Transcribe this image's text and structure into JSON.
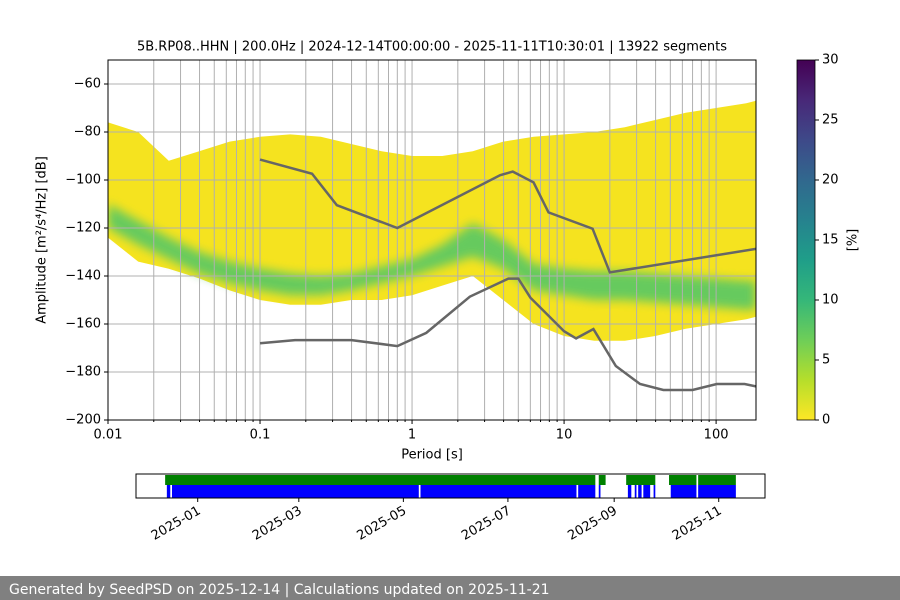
{
  "chart_data": [
    {
      "type": "ppsd",
      "title": "5B.RP08..HHN | 200.0Hz | 2024-12-14T00:00:00 - 2025-11-11T10:30:01 | 13922 segments",
      "xlabel": "Period [s]",
      "ylabel": "Amplitude [m²/s⁴/Hz] [dB]",
      "log_x": true,
      "grid": true,
      "xlim": [
        0.01,
        183
      ],
      "ylim": [
        -200,
        -50
      ],
      "xticks": [
        0.01,
        0.1,
        1,
        10,
        100
      ],
      "xminorticks": [
        0.02,
        0.03,
        0.04,
        0.05,
        0.06,
        0.07,
        0.08,
        0.09,
        0.2,
        0.3,
        0.4,
        0.5,
        0.6,
        0.7,
        0.8,
        0.9,
        2,
        3,
        4,
        5,
        6,
        7,
        8,
        9,
        20,
        30,
        40,
        50,
        60,
        70,
        80,
        90
      ],
      "yticks": [
        {
          "value": -200,
          "label": "−200"
        },
        {
          "value": -180,
          "label": "−180"
        },
        {
          "value": -160,
          "label": "−160"
        },
        {
          "value": -140,
          "label": "−140"
        },
        {
          "value": -120,
          "label": "−120"
        },
        {
          "value": -100,
          "label": "−100"
        },
        {
          "value": -80,
          "label": "−80"
        },
        {
          "value": -60,
          "label": "−60"
        }
      ],
      "density": {
        "color": "#f5e31f",
        "core_color": "#5ec962",
        "x": [
          0.01,
          0.0158,
          0.0251,
          0.0398,
          0.0631,
          0.1,
          0.158,
          0.251,
          0.398,
          0.631,
          1,
          1.58,
          2.51,
          3.98,
          6.31,
          10,
          15.8,
          25.1,
          39.8,
          63.1,
          100,
          158,
          183
        ],
        "upper": [
          -76,
          -80,
          -92,
          -88,
          -84,
          -82,
          -81,
          -82,
          -85,
          -88,
          -90,
          -90,
          -88,
          -84,
          -82,
          -81,
          -80,
          -78,
          -75,
          -72,
          -70,
          -68,
          -67
        ],
        "lower": [
          -124,
          -134,
          -137,
          -141,
          -146,
          -150,
          -152,
          -152,
          -150,
          -150,
          -148,
          -144,
          -140,
          -150,
          -160,
          -165,
          -167,
          -167,
          -165,
          -162,
          -160,
          -158,
          -157
        ],
        "core_upper": [
          -110,
          -117,
          -124,
          -130,
          -134,
          -137,
          -139,
          -140,
          -139,
          -136,
          -133,
          -127,
          -118,
          -125,
          -135,
          -137,
          -138,
          -138,
          -139,
          -140,
          -141,
          -142,
          -142
        ],
        "core_lower": [
          -120,
          -127,
          -133,
          -139,
          -143,
          -146,
          -148,
          -148,
          -146,
          -143,
          -140,
          -136,
          -132,
          -137,
          -146,
          -148,
          -150,
          -150,
          -151,
          -152,
          -153,
          -154,
          -154
        ]
      },
      "series": [
        {
          "color": "#666666",
          "x": [
            0.1,
            0.22,
            0.32,
            0.8,
            3.8,
            4.6,
            6.3,
            7.9,
            15.4,
            20,
            183
          ],
          "values": [
            -91.5,
            -97.4,
            -110.5,
            -120,
            -98,
            -96.5,
            -101,
            -113.5,
            -120.3,
            -138.5,
            -128.7
          ]
        },
        {
          "color": "#666666",
          "x": [
            0.1,
            0.17,
            0.4,
            0.8,
            1.24,
            2.4,
            4.3,
            5,
            6,
            10,
            12,
            15.6,
            21.9,
            31.6,
            45,
            70,
            101,
            154,
            183
          ],
          "values": [
            -168,
            -166.7,
            -166.7,
            -169.2,
            -163.7,
            -148.6,
            -141.1,
            -141.1,
            -149,
            -163,
            -166,
            -162.1,
            -177.5,
            -185,
            -187.5,
            -187.5,
            -185,
            -185,
            -186
          ]
        }
      ],
      "colorbar": {
        "label": "[%]",
        "colormap": "viridis_r",
        "zlim": [
          0,
          30
        ],
        "zticks": [
          0,
          5,
          10,
          15,
          20,
          25,
          30
        ]
      }
    },
    {
      "type": "timeline",
      "xlim": [
        "2024-11-26",
        "2025-11-28"
      ],
      "xticks": [
        "2025-01",
        "2025-03",
        "2025-05",
        "2025-07",
        "2025-09",
        "2025-11"
      ],
      "series": [
        {
          "color": "#008000",
          "spans": [
            [
              "2024-12-13",
              "2025-08-21"
            ],
            [
              "2025-08-23",
              "2025-08-27"
            ],
            [
              "2025-09-08",
              "2025-09-25"
            ],
            [
              "2025-10-03",
              "2025-10-19"
            ],
            [
              "2025-10-20",
              "2025-11-11"
            ]
          ]
        },
        {
          "color": "#0000ff",
          "spans": [
            [
              "2024-12-14",
              "2024-12-16"
            ],
            [
              "2024-12-17",
              "2025-05-10"
            ],
            [
              "2025-05-11",
              "2025-08-10"
            ],
            [
              "2025-08-11",
              "2025-08-21"
            ],
            [
              "2025-08-23",
              "2025-08-24"
            ],
            [
              "2025-09-09",
              "2025-09-11"
            ],
            [
              "2025-09-13",
              "2025-09-14"
            ],
            [
              "2025-09-15",
              "2025-09-17"
            ],
            [
              "2025-09-18",
              "2025-09-22"
            ],
            [
              "2025-09-24",
              "2025-09-25"
            ],
            [
              "2025-10-04",
              "2025-10-19"
            ],
            [
              "2025-10-20",
              "2025-11-11"
            ]
          ]
        }
      ]
    }
  ],
  "footer": "Generated by SeedPSD on 2025-12-14 | Calculations updated on 2025-11-21"
}
